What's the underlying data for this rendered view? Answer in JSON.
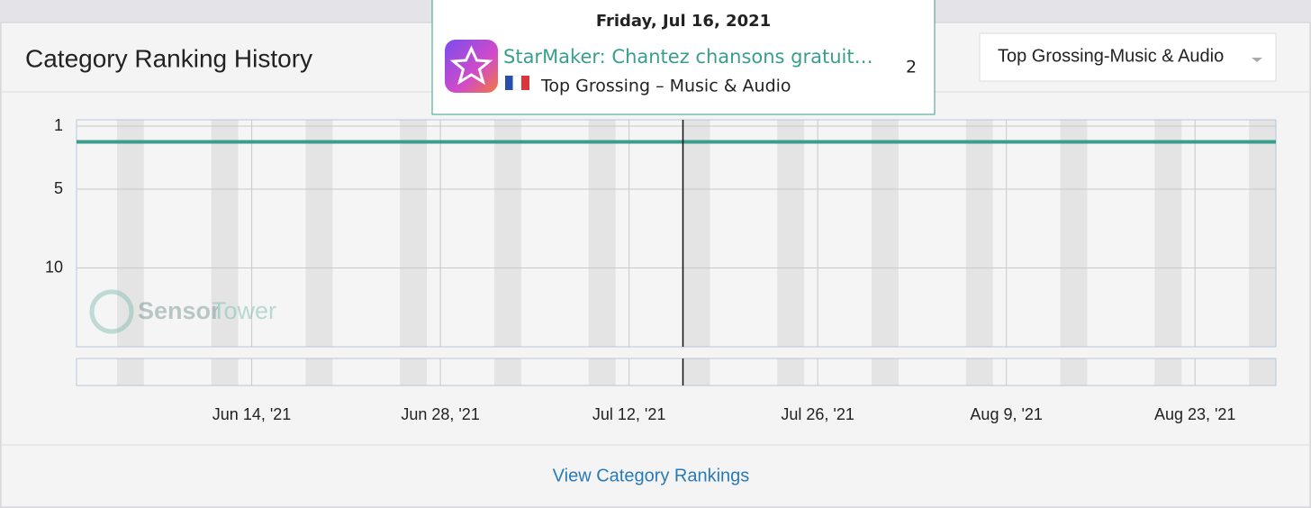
{
  "header": {
    "title": "Category Ranking History",
    "dropdown": "Top Grossing-Music & Audio"
  },
  "watermark": {
    "brand_a": "Sensor",
    "brand_b": "Tower"
  },
  "footer": {
    "link": "View Category Rankings"
  },
  "tooltip": {
    "date": "Friday, Jul 16, 2021",
    "category": "Top Grossing – Music & Audio"
  },
  "chart_data": {
    "type": "line",
    "x": [
      "2021-06-01",
      "2021-07-16",
      "2021-08-29"
    ],
    "series": [
      {
        "name": "StarMaker: Chantez chansons gratuit…",
        "color": "#3a9e8e",
        "values": [
          2,
          2,
          2
        ]
      }
    ],
    "xlim": [
      "2021-06-01",
      "2021-08-29"
    ],
    "xticks": [
      {
        "value": "2021-06-14",
        "label": "Jun 14, '21"
      },
      {
        "value": "2021-06-28",
        "label": "Jun 28, '21"
      },
      {
        "value": "2021-07-12",
        "label": "Jul 12, '21"
      },
      {
        "value": "2021-07-26",
        "label": "Jul 26, '21"
      },
      {
        "value": "2021-08-09",
        "label": "Aug 9, '21"
      },
      {
        "value": "2021-08-23",
        "label": "Aug 23, '21"
      }
    ],
    "ylim": [
      0.6,
      15
    ],
    "y_reversed": true,
    "yticks": [
      1,
      5,
      10
    ],
    "grid": true
  }
}
